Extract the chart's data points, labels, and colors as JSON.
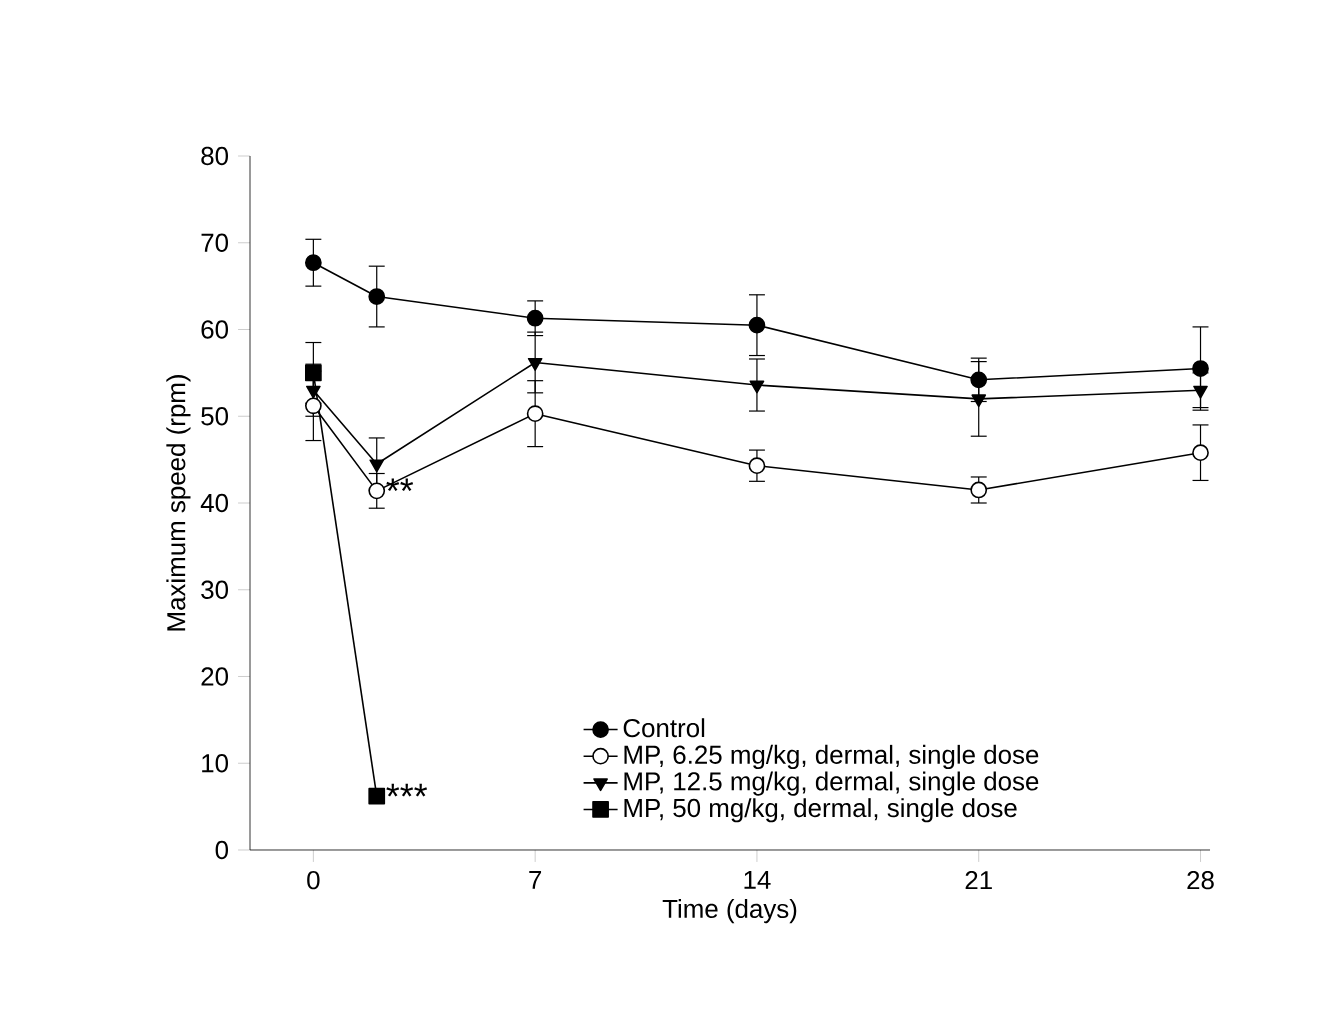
{
  "chart_data": {
    "type": "line",
    "xlabel": "Time (days)",
    "ylabel": "Maximum speed (rpm)",
    "xlim": [
      -2,
      28.3
    ],
    "xticks": [
      0,
      7,
      14,
      21,
      28
    ],
    "ylim": [
      0,
      80
    ],
    "yticks": [
      0,
      10,
      20,
      30,
      40,
      50,
      60,
      70,
      80
    ],
    "legend": "bottom right",
    "grid": false,
    "series": [
      {
        "name": "Control",
        "color": "#000000",
        "marker": "circle",
        "x": [
          0,
          2,
          7,
          14,
          21,
          28
        ],
        "values": [
          67.7,
          63.8,
          61.3,
          60.5,
          54.2,
          55.5
        ],
        "errors": [
          2.7,
          3.5,
          2,
          3.5,
          2.5,
          4.8
        ]
      },
      {
        "name": "MP, 6.25 mg/kg, dermal, single dose",
        "color": "#ffffff",
        "marker": "circle",
        "x": [
          0,
          2,
          7,
          14,
          21,
          28
        ],
        "values": [
          51.2,
          41.4,
          50.3,
          44.3,
          41.5,
          45.8
        ],
        "errors": [
          4,
          2,
          3.8,
          1.8,
          1.5,
          3.2
        ]
      },
      {
        "name": "MP, 12.5 mg/kg, dermal, single dose",
        "color": "#000000",
        "marker": "triangle-down",
        "x": [
          0,
          2,
          7,
          14,
          21,
          28
        ],
        "values": [
          53,
          44.5,
          56.2,
          53.6,
          52,
          53
        ],
        "errors": [
          3,
          3,
          3.5,
          3,
          4.3,
          2
        ]
      },
      {
        "name": "MP, 50 mg/kg, dermal, single dose",
        "color": "#000000",
        "marker": "square",
        "x": [
          0,
          2
        ],
        "values": [
          55,
          6.2
        ],
        "errors": [
          3.5,
          null
        ]
      }
    ],
    "annotations": [
      {
        "text": "**",
        "x": 2,
        "y": 41.4
      },
      {
        "text": "***",
        "x": 2,
        "y": 6.2
      }
    ]
  }
}
